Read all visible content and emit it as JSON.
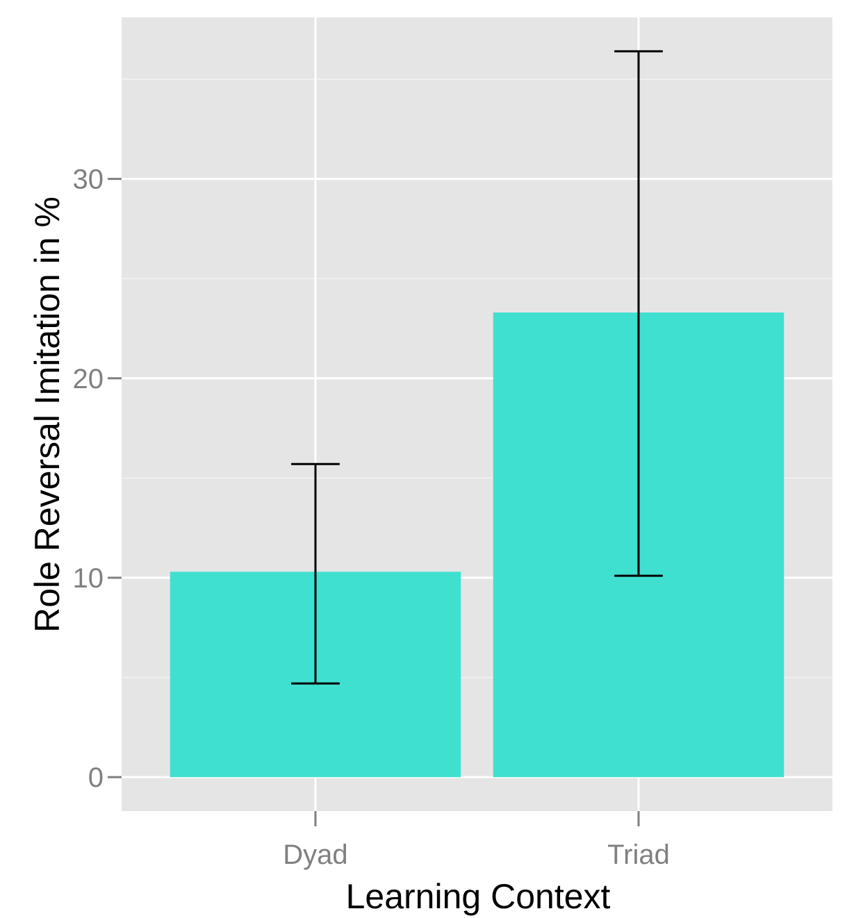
{
  "chart_data": {
    "type": "bar",
    "title": "",
    "xlabel": "Learning Context",
    "ylabel": "Role Reversal Imitation in %",
    "categories": [
      "Dyad",
      "Triad"
    ],
    "values": [
      10.3,
      23.3
    ],
    "error_bars": [
      {
        "low": 4.7,
        "high": 15.7
      },
      {
        "low": 10.1,
        "high": 36.4
      }
    ],
    "ylim": [
      -1.7,
      38.1
    ],
    "yticks": [
      0,
      10,
      20,
      30
    ],
    "grid": true,
    "legend": "none",
    "colors": {
      "bar": "#40E0D0",
      "panel": "#E5E5E5",
      "grid": "#FFFFFF",
      "error_bar": "#000000",
      "tick_label": "#7F7F7F",
      "tick_mark": "#7F7F7F",
      "axis_title": "#000000"
    }
  }
}
